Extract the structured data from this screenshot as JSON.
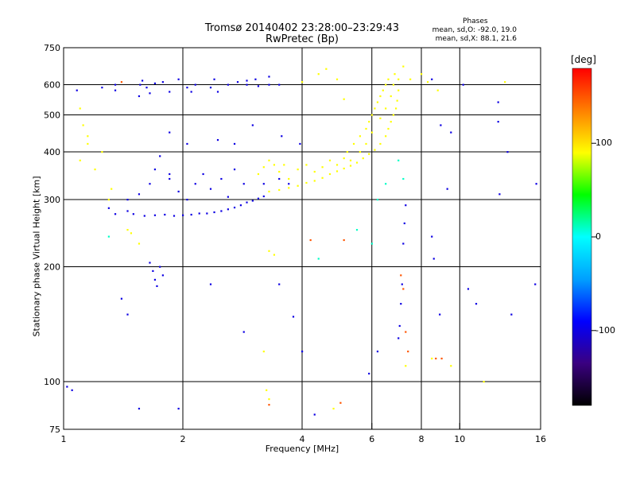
{
  "header": {
    "title_line1": "Tromsø 20140402 23:28:00–23:29:43",
    "title_line2": "RwPretec (Bp)",
    "phase_title": "Phases",
    "phase_line1": "mean, sd,O: -92.0, 19.0",
    "phase_line2": "mean, sd,X: 88.1, 21.6"
  },
  "colorbar": {
    "unit": "[deg]",
    "range": [
      -180,
      180
    ],
    "ticks": [
      100,
      0,
      -100
    ],
    "colors": [
      "#000000",
      "#3a0080",
      "#0000ff",
      "#00a0ff",
      "#00ffff",
      "#00ff00",
      "#ffff00",
      "#ff8000",
      "#ff0000"
    ]
  },
  "chart_data": {
    "type": "scatter",
    "title": "Tromsø 20140402 23:28:00–23:29:43",
    "subtitle": "RwPretec (Bp)",
    "xlabel": "Frequency [MHz]",
    "ylabel": "Stationary phase Virtual Height [km]",
    "xscale": "log",
    "yscale": "log",
    "xlim": [
      1,
      16
    ],
    "ylim": [
      75,
      750
    ],
    "x_ticks": [
      1,
      2,
      4,
      6,
      8,
      10,
      16
    ],
    "y_ticks": [
      75,
      100,
      200,
      300,
      400,
      500,
      600,
      750
    ],
    "grid": true,
    "grid_x": [
      2,
      4,
      6,
      8,
      10
    ],
    "grid_y": [
      100,
      200,
      300,
      400,
      500,
      600
    ],
    "color_scale": "phase (deg)",
    "series": [
      {
        "points": [
          [
            1.08,
            580
          ],
          [
            1.25,
            590
          ],
          [
            1.35,
            600
          ],
          [
            1.35,
            580
          ],
          [
            1.55,
            560
          ],
          [
            1.56,
            600
          ],
          [
            1.58,
            615
          ],
          [
            1.62,
            590
          ],
          [
            1.65,
            570
          ],
          [
            1.7,
            605
          ],
          [
            1.78,
            610
          ],
          [
            1.85,
            575
          ],
          [
            1.95,
            620
          ],
          [
            2.05,
            590
          ],
          [
            2.1,
            575
          ],
          [
            2.15,
            600
          ],
          [
            2.35,
            590
          ],
          [
            2.4,
            620
          ],
          [
            2.45,
            575
          ],
          [
            2.6,
            600
          ],
          [
            2.75,
            610
          ],
          [
            2.9,
            615
          ],
          [
            3.05,
            620
          ],
          [
            3.1,
            595
          ],
          [
            3.3,
            630
          ],
          [
            3.5,
            600
          ],
          [
            1.3,
            285
          ],
          [
            1.35,
            275
          ],
          [
            1.45,
            280
          ],
          [
            1.5,
            275
          ],
          [
            1.6,
            272
          ],
          [
            1.7,
            273
          ],
          [
            1.8,
            274
          ],
          [
            1.9,
            272
          ],
          [
            2.0,
            273
          ],
          [
            2.1,
            274
          ],
          [
            2.2,
            276
          ],
          [
            2.3,
            276
          ],
          [
            2.4,
            278
          ],
          [
            2.5,
            280
          ],
          [
            2.6,
            283
          ],
          [
            2.7,
            286
          ],
          [
            2.8,
            290
          ],
          [
            2.9,
            295
          ],
          [
            3.0,
            298
          ],
          [
            3.1,
            302
          ],
          [
            3.2,
            306
          ],
          [
            1.45,
            300
          ],
          [
            1.55,
            310
          ],
          [
            1.65,
            330
          ],
          [
            1.7,
            360
          ],
          [
            1.75,
            390
          ],
          [
            1.85,
            340
          ],
          [
            1.95,
            315
          ],
          [
            2.05,
            300
          ],
          [
            2.15,
            330
          ],
          [
            2.25,
            350
          ],
          [
            2.35,
            320
          ],
          [
            2.5,
            340
          ],
          [
            2.6,
            305
          ],
          [
            2.7,
            360
          ],
          [
            2.85,
            330
          ],
          [
            1.65,
            205
          ],
          [
            1.68,
            195
          ],
          [
            1.7,
            185
          ],
          [
            1.72,
            178
          ],
          [
            1.75,
            200
          ],
          [
            1.78,
            190
          ],
          [
            1.05,
            95
          ],
          [
            1.02,
            97
          ],
          [
            1.45,
            150
          ],
          [
            1.4,
            165
          ],
          [
            2.35,
            180
          ],
          [
            2.85,
            135
          ],
          [
            3.5,
            180
          ],
          [
            3.8,
            148
          ],
          [
            1.85,
            450
          ],
          [
            2.05,
            420
          ],
          [
            2.45,
            430
          ],
          [
            2.7,
            420
          ],
          [
            3.0,
            470
          ],
          [
            3.55,
            440
          ],
          [
            3.95,
            420
          ],
          [
            3.2,
            330
          ],
          [
            3.5,
            340
          ],
          [
            3.7,
            330
          ],
          [
            4.3,
            82
          ],
          [
            5.9,
            105
          ],
          [
            6.2,
            120
          ],
          [
            7.0,
            130
          ],
          [
            7.05,
            140
          ],
          [
            7.1,
            160
          ],
          [
            7.15,
            180
          ],
          [
            7.2,
            230
          ],
          [
            7.25,
            260
          ],
          [
            7.3,
            290
          ],
          [
            8.5,
            240
          ],
          [
            8.6,
            210
          ],
          [
            8.9,
            150
          ],
          [
            9.3,
            320
          ],
          [
            10.5,
            175
          ],
          [
            11.0,
            160
          ],
          [
            12.5,
            540
          ],
          [
            12.5,
            480
          ],
          [
            12.6,
            310
          ],
          [
            13.5,
            150
          ],
          [
            15.5,
            180
          ],
          [
            15.6,
            330
          ],
          [
            8.95,
            470
          ],
          [
            9.5,
            450
          ],
          [
            10.2,
            600
          ],
          [
            8.5,
            620
          ],
          [
            1.55,
            85
          ],
          [
            1.95,
            85
          ],
          [
            13.2,
            400
          ],
          [
            4.0,
            120
          ],
          [
            1.85,
            350
          ],
          [
            2.9,
            600
          ],
          [
            3.3,
            600
          ]
        ],
        "phase": -100
      },
      {
        "points": [
          [
            3.3,
            315
          ],
          [
            3.5,
            318
          ],
          [
            3.7,
            322
          ],
          [
            3.9,
            326
          ],
          [
            4.1,
            332
          ],
          [
            4.3,
            336
          ],
          [
            4.5,
            342
          ],
          [
            4.7,
            350
          ],
          [
            4.9,
            356
          ],
          [
            5.1,
            362
          ],
          [
            5.3,
            368
          ],
          [
            5.5,
            375
          ],
          [
            5.7,
            385
          ],
          [
            5.9,
            395
          ],
          [
            6.1,
            405
          ],
          [
            6.3,
            420
          ],
          [
            6.5,
            440
          ],
          [
            6.6,
            460
          ],
          [
            6.7,
            480
          ],
          [
            6.8,
            500
          ],
          [
            6.9,
            520
          ],
          [
            6.95,
            545
          ],
          [
            7.0,
            580
          ],
          [
            7.0,
            620
          ],
          [
            3.1,
            350
          ],
          [
            3.2,
            365
          ],
          [
            3.3,
            380
          ],
          [
            3.4,
            370
          ],
          [
            3.5,
            355
          ],
          [
            3.6,
            370
          ],
          [
            3.7,
            340
          ],
          [
            3.9,
            360
          ],
          [
            4.1,
            370
          ],
          [
            4.3,
            355
          ],
          [
            4.5,
            365
          ],
          [
            4.7,
            380
          ],
          [
            4.9,
            370
          ],
          [
            5.1,
            385
          ],
          [
            5.2,
            400
          ],
          [
            5.4,
            420
          ],
          [
            5.6,
            440
          ],
          [
            5.8,
            460
          ],
          [
            5.9,
            480
          ],
          [
            6.0,
            500
          ],
          [
            6.1,
            520
          ],
          [
            6.2,
            540
          ],
          [
            6.3,
            560
          ],
          [
            6.4,
            580
          ],
          [
            6.5,
            600
          ],
          [
            6.6,
            620
          ],
          [
            6.7,
            560
          ],
          [
            6.8,
            600
          ],
          [
            6.85,
            640
          ],
          [
            6.5,
            520
          ],
          [
            6.3,
            490
          ],
          [
            6.0,
            450
          ],
          [
            5.8,
            420
          ],
          [
            5.6,
            400
          ],
          [
            5.3,
            380
          ],
          [
            1.1,
            520
          ],
          [
            1.12,
            470
          ],
          [
            1.15,
            420
          ],
          [
            1.1,
            380
          ],
          [
            1.2,
            360
          ],
          [
            1.15,
            440
          ],
          [
            1.25,
            400
          ],
          [
            1.3,
            300
          ],
          [
            1.32,
            320
          ],
          [
            1.45,
            250
          ],
          [
            1.48,
            245
          ],
          [
            1.55,
            230
          ],
          [
            3.3,
            220
          ],
          [
            3.4,
            215
          ],
          [
            4.0,
            610
          ],
          [
            4.4,
            640
          ],
          [
            4.6,
            660
          ],
          [
            4.9,
            620
          ],
          [
            5.1,
            550
          ],
          [
            7.2,
            670
          ],
          [
            7.5,
            620
          ],
          [
            8.0,
            640
          ],
          [
            8.3,
            610
          ],
          [
            8.8,
            580
          ],
          [
            3.2,
            120
          ],
          [
            3.25,
            95
          ],
          [
            3.3,
            90
          ],
          [
            4.8,
            85
          ],
          [
            7.3,
            110
          ],
          [
            8.5,
            115
          ],
          [
            9.5,
            110
          ],
          [
            11.5,
            100
          ],
          [
            13.0,
            610
          ]
        ],
        "phase": 90
      },
      {
        "points": [
          [
            7.1,
            190
          ],
          [
            7.2,
            175
          ],
          [
            7.3,
            135
          ],
          [
            7.4,
            120
          ],
          [
            5.1,
            235
          ],
          [
            4.2,
            235
          ],
          [
            8.7,
            115
          ],
          [
            9.0,
            115
          ],
          [
            3.3,
            87
          ],
          [
            1.4,
            610
          ],
          [
            5.0,
            88
          ]
        ],
        "phase": 150
      },
      {
        "points": [
          [
            6.0,
            230
          ],
          [
            6.2,
            300
          ],
          [
            6.5,
            330
          ],
          [
            7.2,
            340
          ],
          [
            7.0,
            380
          ],
          [
            5.5,
            250
          ],
          [
            1.3,
            240
          ],
          [
            4.4,
            210
          ]
        ],
        "phase": 10
      }
    ]
  }
}
